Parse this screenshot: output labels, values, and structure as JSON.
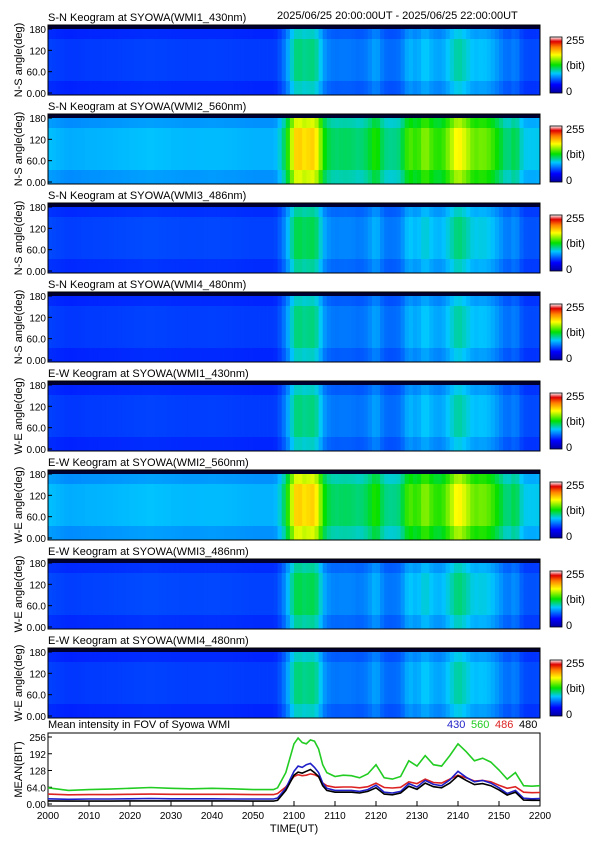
{
  "header": {
    "time_range": "2025/06/25 20:00:00UT - 2025/06/25 22:00:00UT"
  },
  "colorbar": {
    "max_label": "255",
    "unit_label": "(bit)",
    "min_label": "0"
  },
  "keograms": [
    {
      "title": "S-N Keogram at SYOWA(WMI1_430nm)",
      "ylabel": "N-S angle(deg)",
      "intensity_scale": 0.55
    },
    {
      "title": "S-N Keogram at SYOWA(WMI2_560nm)",
      "ylabel": "N-S angle(deg)",
      "intensity_scale": 1.0
    },
    {
      "title": "S-N Keogram at SYOWA(WMI3_486nm)",
      "ylabel": "N-S angle(deg)",
      "intensity_scale": 0.6
    },
    {
      "title": "S-N Keogram at SYOWA(WMI4_480nm)",
      "ylabel": "N-S angle(deg)",
      "intensity_scale": 0.55
    },
    {
      "title": "E-W Keogram at SYOWA(WMI1_430nm)",
      "ylabel": "W-E angle(deg)",
      "intensity_scale": 0.55
    },
    {
      "title": "E-W Keogram at SYOWA(WMI2_560nm)",
      "ylabel": "W-E angle(deg)",
      "intensity_scale": 1.0
    },
    {
      "title": "E-W Keogram at SYOWA(WMI3_486nm)",
      "ylabel": "W-E angle(deg)",
      "intensity_scale": 0.6
    },
    {
      "title": "E-W Keogram at SYOWA(WMI4_480nm)",
      "ylabel": "W-E angle(deg)",
      "intensity_scale": 0.55
    }
  ],
  "keogram_yticks": [
    "180",
    "120",
    "60.0",
    "0.00"
  ],
  "keogram_ytick_values": [
    180,
    120,
    60,
    0
  ],
  "mean_panel": {
    "title": "Mean intensity in FOV of Syowa WMI",
    "ylabel": "MEAN(BIT)",
    "xlabel": "TIME(UT)",
    "yticks": [
      "256",
      "192",
      "128",
      "64.0",
      "0.00"
    ],
    "ytick_values": [
      256,
      192,
      128,
      64,
      0
    ],
    "xticks": [
      "2000",
      "2010",
      "2020",
      "2030",
      "2040",
      "2050",
      "2100",
      "2110",
      "2120",
      "2130",
      "2140",
      "2150",
      "2200"
    ],
    "legend": [
      {
        "label": "430",
        "color": "#1f1fc8"
      },
      {
        "label": "560",
        "color": "#22cc22"
      },
      {
        "label": "486",
        "color": "#dd2222"
      },
      {
        "label": "480",
        "color": "#000000"
      }
    ]
  },
  "chart_data": {
    "type": "line",
    "title": "Mean intensity in FOV of Syowa WMI",
    "xlabel": "TIME(UT)",
    "ylabel": "MEAN(BIT)",
    "ylim": [
      0,
      256
    ],
    "x_unit": "minutes after 20:00 UT",
    "x": [
      0,
      5,
      10,
      15,
      20,
      25,
      30,
      35,
      40,
      45,
      50,
      55,
      56,
      58,
      60,
      61,
      62,
      63,
      64,
      65,
      66,
      67,
      68,
      70,
      72,
      74,
      76,
      78,
      80,
      82,
      84,
      86,
      88,
      90,
      92,
      94,
      96,
      98,
      100,
      102,
      104,
      106,
      108,
      110,
      112,
      114,
      116,
      118,
      120
    ],
    "series": [
      {
        "name": "560",
        "color": "#22cc22",
        "values": [
          62,
          52,
          55,
          57,
          60,
          63,
          60,
          58,
          60,
          58,
          55,
          55,
          62,
          120,
          230,
          252,
          235,
          230,
          245,
          240,
          210,
          150,
          120,
          105,
          110,
          108,
          100,
          115,
          150,
          100,
          95,
          105,
          165,
          145,
          185,
          150,
          145,
          185,
          230,
          200,
          165,
          175,
          160,
          130,
          95,
          120,
          70,
          68,
          70
        ]
      },
      {
        "name": "486",
        "color": "#dd2222",
        "values": [
          38,
          35,
          36,
          36,
          37,
          38,
          37,
          37,
          37,
          37,
          36,
          36,
          40,
          65,
          105,
          112,
          108,
          110,
          115,
          112,
          104,
          80,
          70,
          64,
          65,
          65,
          62,
          66,
          80,
          63,
          61,
          64,
          85,
          78,
          95,
          82,
          80,
          95,
          110,
          100,
          88,
          90,
          85,
          72,
          60,
          66,
          45,
          43,
          44
        ]
      },
      {
        "name": "430",
        "color": "#1f1fc8",
        "values": [
          20,
          18,
          19,
          19,
          20,
          21,
          20,
          20,
          20,
          19,
          19,
          19,
          23,
          60,
          125,
          145,
          140,
          150,
          155,
          140,
          120,
          80,
          60,
          52,
          52,
          52,
          48,
          55,
          72,
          45,
          42,
          48,
          78,
          65,
          90,
          75,
          70,
          92,
          125,
          102,
          85,
          90,
          80,
          62,
          40,
          52,
          22,
          20,
          21
        ]
      },
      {
        "name": "480",
        "color": "#000000",
        "values": [
          12,
          11,
          11,
          11,
          12,
          12,
          12,
          12,
          12,
          12,
          11,
          11,
          14,
          52,
          110,
          122,
          118,
          125,
          132,
          120,
          105,
          70,
          52,
          45,
          45,
          45,
          42,
          48,
          62,
          38,
          35,
          42,
          68,
          56,
          80,
          66,
          62,
          80,
          108,
          90,
          74,
          78,
          70,
          54,
          34,
          45,
          15,
          14,
          14
        ]
      }
    ]
  }
}
